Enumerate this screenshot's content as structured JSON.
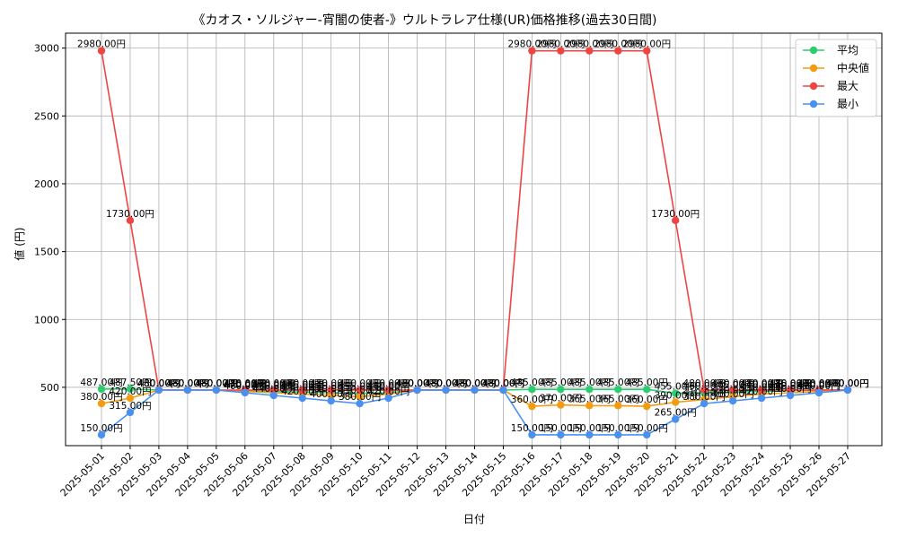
{
  "chart_data": {
    "type": "line",
    "title": "《カオス・ソルジャー-宵闇の使者-》ウルトラレア仕様(UR)価格推移(過去30日間)",
    "xlabel": "日付",
    "ylabel": "値 (円)",
    "ylim": [
      70,
      3110
    ],
    "yticks": [
      500,
      1000,
      1500,
      2000,
      2500,
      3000
    ],
    "grid": true,
    "legend_position": "top-right",
    "categories": [
      "2025-05-01",
      "2025-05-02",
      "2025-05-03",
      "2025-05-04",
      "2025-05-05",
      "2025-05-06",
      "2025-05-07",
      "2025-05-08",
      "2025-05-09",
      "2025-05-10",
      "2025-05-11",
      "2025-05-12",
      "2025-05-13",
      "2025-05-14",
      "2025-05-15",
      "2025-05-16",
      "2025-05-17",
      "2025-05-18",
      "2025-05-19",
      "2025-05-20",
      "2025-05-21",
      "2025-05-22",
      "2025-05-23",
      "2025-05-24",
      "2025-05-25",
      "2025-05-26",
      "2025-05-27"
    ],
    "series": [
      {
        "name": "平均",
        "color": "#2ecc71",
        "values": [
          487.0,
          487.5,
          480,
          480,
          480,
          475,
          470,
          465,
          460,
          455,
          460,
          480,
          480,
          480,
          480,
          485,
          485,
          485,
          485,
          485,
          455,
          460,
          465,
          470,
          475,
          480,
          480
        ]
      },
      {
        "name": "中央値",
        "color": "#f39c12",
        "values": [
          380,
          420,
          480,
          480,
          480,
          470,
          460,
          450,
          440,
          430,
          450,
          480,
          480,
          480,
          480,
          360,
          370,
          365,
          365,
          360,
          390,
          410,
          430,
          450,
          460,
          470,
          480
        ]
      },
      {
        "name": "最大",
        "color": "#ef4444",
        "values": [
          2980,
          1730,
          480,
          480,
          480,
          480,
          480,
          480,
          480,
          480,
          480,
          480,
          480,
          480,
          480,
          2980,
          2980,
          2980,
          2980,
          2980,
          1730,
          480,
          480,
          480,
          480,
          480,
          480
        ]
      },
      {
        "name": "最小",
        "color": "#4a90f0",
        "values": [
          150,
          315,
          480,
          480,
          480,
          460,
          440,
          420,
          400,
          380,
          420,
          480,
          480,
          480,
          480,
          150,
          150,
          150,
          150,
          150,
          265,
          380,
          400,
          420,
          440,
          460,
          480
        ]
      }
    ],
    "label_suffix": "円"
  }
}
